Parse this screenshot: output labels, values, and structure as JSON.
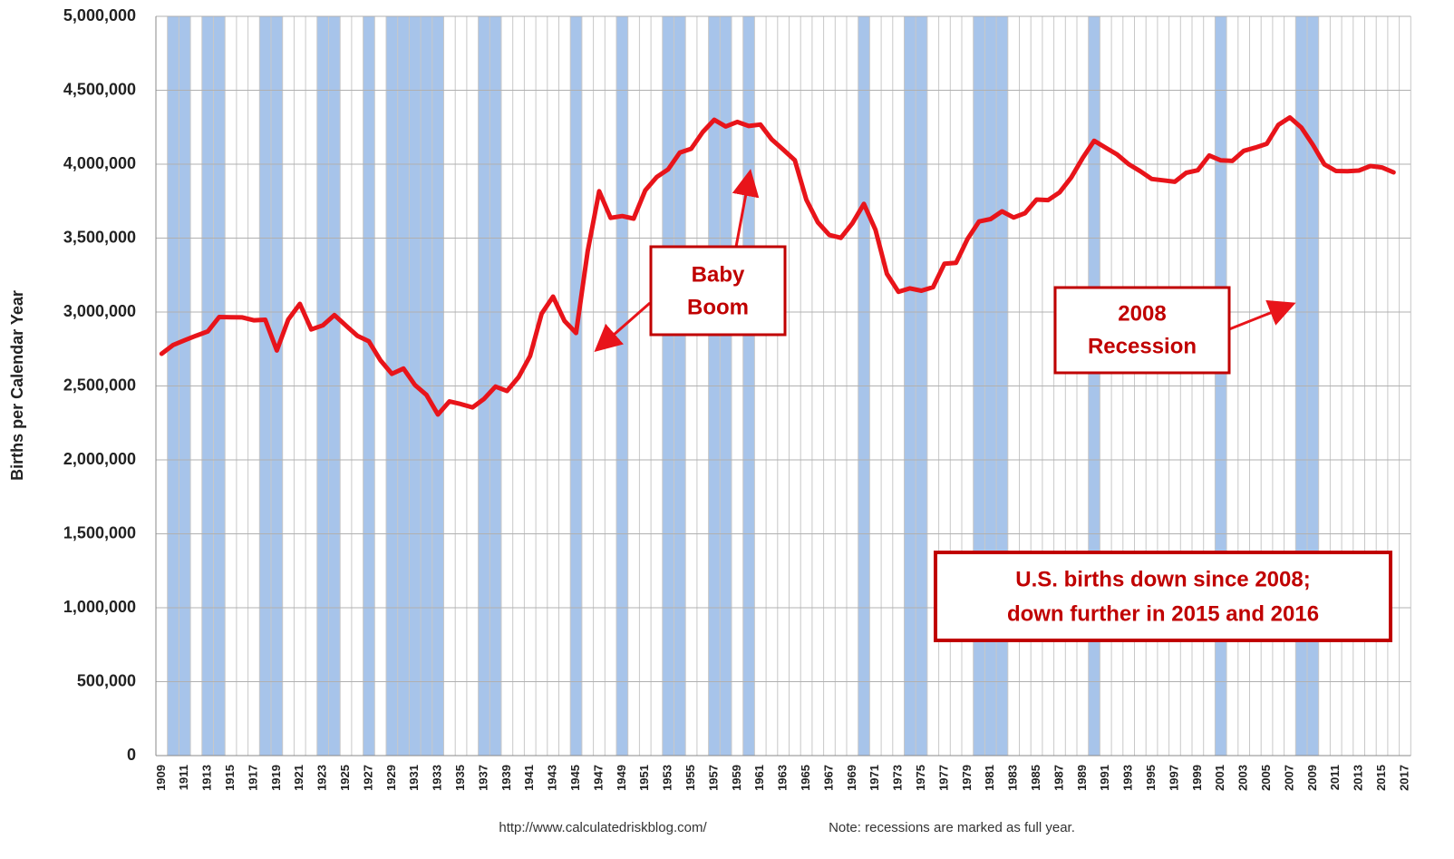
{
  "chart_data": {
    "type": "line",
    "y_axis_label": "Births per Calendar Year",
    "footer": [
      "http://www.calculatedriskblog.com/",
      "Note:  recessions are marked  as full year."
    ],
    "annotations": [
      [
        "Baby",
        "Boom"
      ],
      [
        "2008",
        "Recession"
      ],
      [
        "U.S. births down since 2008;",
        "down further in 2015 and 2016"
      ]
    ],
    "categories": [
      "1909",
      null,
      "1911",
      null,
      "1913",
      null,
      "1915",
      null,
      "1917",
      null,
      "1919",
      null,
      "1921",
      null,
      "1923",
      null,
      "1925",
      null,
      "1927",
      null,
      "1929",
      null,
      "1931",
      null,
      "1933",
      null,
      "1935",
      null,
      "1937",
      null,
      "1939",
      null,
      "1941",
      null,
      "1943",
      null,
      "1945",
      null,
      "1947",
      null,
      "1949",
      null,
      "1951",
      null,
      "1953",
      null,
      "1955",
      null,
      "1957",
      null,
      "1959",
      null,
      "1961",
      null,
      "1963",
      null,
      "1965",
      null,
      "1967",
      null,
      "1969",
      null,
      "1971",
      null,
      "1973",
      null,
      "1975",
      null,
      "1977",
      null,
      "1979",
      null,
      "1981",
      null,
      "1983",
      null,
      "1985",
      null,
      "1987",
      null,
      "1989",
      null,
      "1991",
      null,
      "1993",
      null,
      "1995",
      null,
      "1997",
      null,
      "1999",
      null,
      "2001",
      null,
      "2003",
      null,
      "2005",
      null,
      "2007",
      null,
      "2009",
      null,
      "2011",
      null,
      "2013",
      null,
      "2015",
      null,
      "2017"
    ],
    "series": [
      {
        "name": "Births",
        "color": "#e8141a",
        "values": [
          2718000,
          2777000,
          2809000,
          2840000,
          2869000,
          2966000,
          2965000,
          2964000,
          2944000,
          2948000,
          2740000,
          2950000,
          3055000,
          2882000,
          2910000,
          2979000,
          2909000,
          2839000,
          2802000,
          2674000,
          2582000,
          2618000,
          2506000,
          2440000,
          2307000,
          2396000,
          2377000,
          2355000,
          2413000,
          2496000,
          2466000,
          2559000,
          2703000,
          2989000,
          3104000,
          2939000,
          2858000,
          3411000,
          3817000,
          3637000,
          3649000,
          3632000,
          3823000,
          3913000,
          3965000,
          4078000,
          4104000,
          4218000,
          4300000,
          4255000,
          4286000,
          4258000,
          4268000,
          4167000,
          4098000,
          4027000,
          3760000,
          3606000,
          3521000,
          3502000,
          3600000,
          3731000,
          3556000,
          3258000,
          3137000,
          3160000,
          3144000,
          3168000,
          3327000,
          3333000,
          3494000,
          3612000,
          3629000,
          3681000,
          3639000,
          3669000,
          3761000,
          3757000,
          3809000,
          3910000,
          4041000,
          4158000,
          4111000,
          4065000,
          4000000,
          3953000,
          3900000,
          3891000,
          3881000,
          3942000,
          3959000,
          4059000,
          4026000,
          4022000,
          4090000,
          4112000,
          4138000,
          4266000,
          4316000,
          4248000,
          4131000,
          3999000,
          3954000,
          3953000,
          3957000,
          3988000,
          3978000,
          3945000,
          null
        ]
      }
    ],
    "recessions": [
      1910,
      1911,
      1913,
      1914,
      1918,
      1919,
      1923,
      1924,
      1927,
      1929,
      1930,
      1931,
      1932,
      1933,
      1937,
      1938,
      1945,
      1949,
      1953,
      1954,
      1957,
      1958,
      1960,
      1970,
      1974,
      1975,
      1980,
      1981,
      1982,
      1990,
      2001,
      2008,
      2009
    ],
    "recession_color": "#a7c4ea",
    "ylim": [
      0,
      5000000
    ],
    "yticks": [
      0,
      {
        "value": 500000,
        "label": "500,000"
      },
      {
        "value": 1000000,
        "label": "1,000,000"
      },
      {
        "value": 1500000,
        "label": "1,500,000"
      },
      {
        "value": 2000000,
        "label": "2,000,000"
      },
      {
        "value": 2500000,
        "label": "2,500,000"
      },
      {
        "value": 3000000,
        "label": "3,000,000"
      },
      {
        "value": 3500000,
        "label": "3,500,000"
      },
      {
        "value": 4000000,
        "label": "4,000,000"
      },
      {
        "value": 4500000,
        "label": "4,500,000"
      },
      {
        "value": 5000000,
        "label": "5,000,000"
      }
    ],
    "grid": true
  }
}
